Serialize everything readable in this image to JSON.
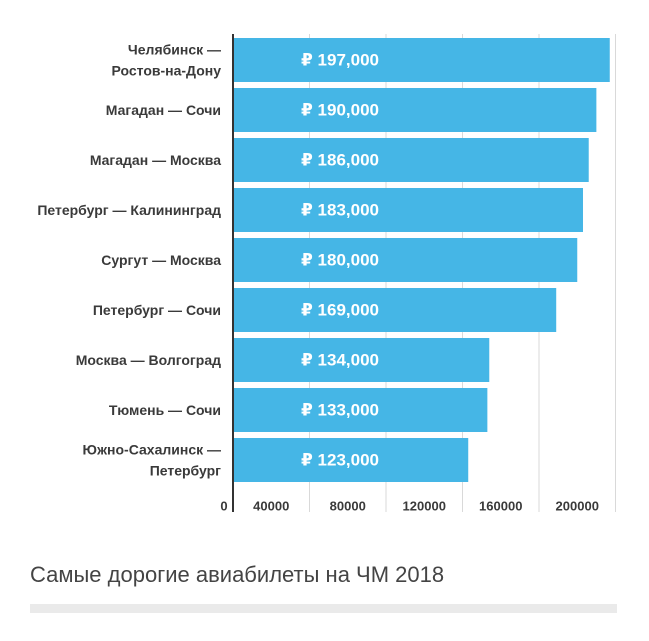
{
  "chart_data": {
    "type": "bar",
    "orientation": "horizontal",
    "categories": [
      [
        "Челябинск —",
        "Ростов-на-Дону"
      ],
      [
        "Магадан — Сочи"
      ],
      [
        "Магадан — Москва"
      ],
      [
        "Петербург — Калининград"
      ],
      [
        "Сургут — Москва"
      ],
      [
        "Петербург — Сочи"
      ],
      [
        "Москва — Волгоград"
      ],
      [
        "Тюмень — Сочи"
      ],
      [
        "Южно-Сахалинск —",
        "Петербург"
      ]
    ],
    "values": [
      197000,
      190000,
      186000,
      183000,
      180000,
      169000,
      134000,
      133000,
      123000
    ],
    "value_labels": [
      "₽ 197,000",
      "₽ 190,000",
      "₽ 186,000",
      "₽ 183,000",
      "₽ 180,000",
      "₽ 169,000",
      "₽ 134,000",
      "₽ 133,000",
      "₽ 123,000"
    ],
    "xticks": [
      0,
      40000,
      80000,
      120000,
      160000,
      200000
    ],
    "xtick_labels": [
      "0",
      "40000",
      "80000",
      "120000",
      "160000",
      "200000"
    ],
    "xlim": [
      0,
      200000
    ],
    "grid": "vertical",
    "bar_color": "#45b6e6",
    "grid_color": "#d9d9d9",
    "axis_color": "#333333"
  },
  "caption": {
    "title": "Самые дорогие авиабилеты на ЧМ 2018"
  }
}
